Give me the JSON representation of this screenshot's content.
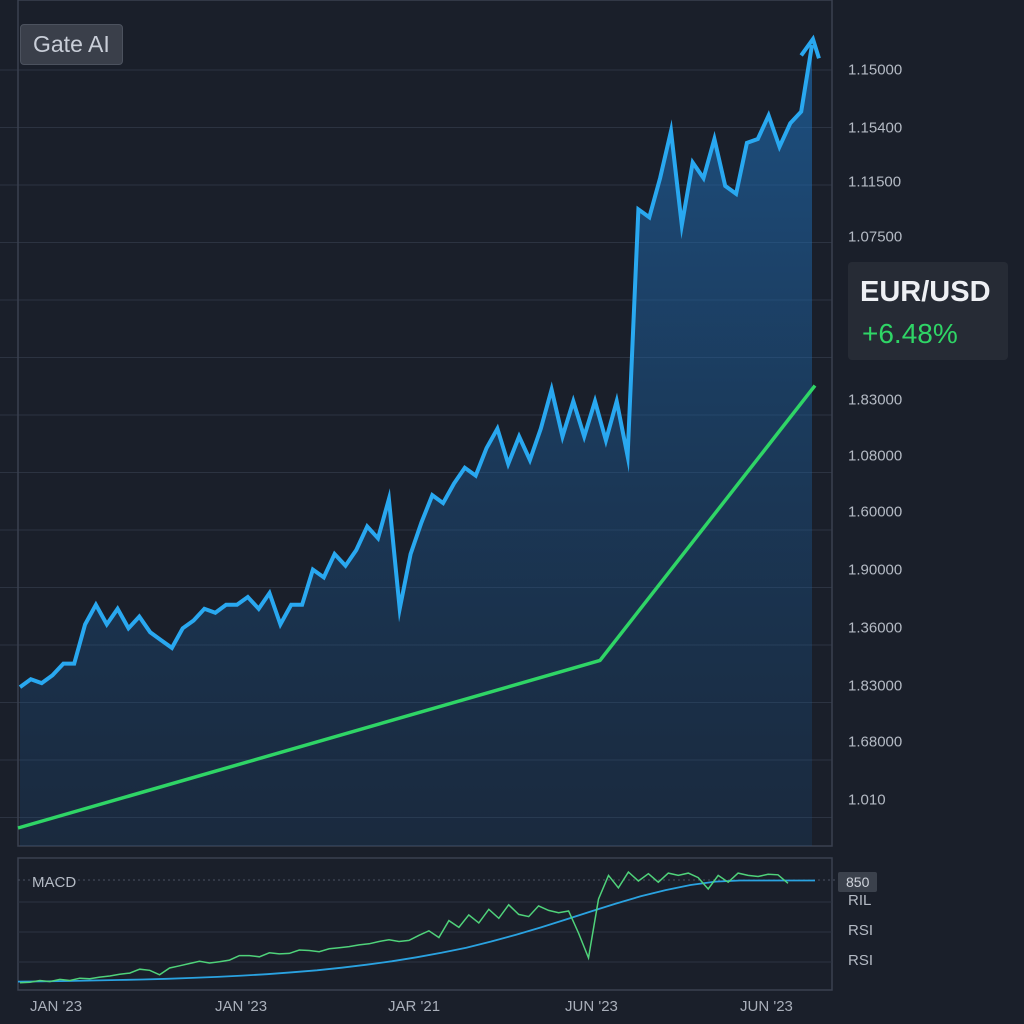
{
  "brand": "Gate AI",
  "pair": {
    "name": "EUR/USD",
    "change": "+6.48%"
  },
  "colors": {
    "price_line": "#29a8f0",
    "moving_average": "#2fd566",
    "macd_line": "#2aa2e0",
    "signal_line": "#4fd27a",
    "background": "#1a1f2a"
  },
  "price_axis_labels": [
    "1.15000",
    "1.15400",
    "1.11500",
    "1.07500",
    "1.83000",
    "1.08000",
    "1.60000",
    "1.90000",
    "1.36000",
    "1.83000",
    "1.68000",
    "1.010"
  ],
  "indicator_panel": {
    "title": "MACD",
    "value_badge": "850",
    "labels": [
      "RIL",
      "RSI",
      "RSI"
    ]
  },
  "date_labels": [
    "JAN '23",
    "JAN '23",
    "JAR '21",
    "JUN '23",
    "JUN '23"
  ],
  "chart_data": [
    {
      "type": "line",
      "title": "",
      "grid": true,
      "y_scale": "price axis labels are not monotonic; series given as relative level 0–100 read from gridlines",
      "series": [
        {
          "values": [
            18,
            19,
            18.5,
            19.5,
            21,
            21,
            26,
            28.5,
            26,
            28,
            25.5,
            27,
            25,
            24,
            23,
            25.5,
            26.5,
            28,
            27.5,
            28.5,
            28.5,
            29.5,
            28,
            30,
            26,
            28.5,
            28.5,
            33,
            32,
            35,
            33.5,
            35.5,
            38.5,
            37,
            42,
            28,
            35,
            39,
            42.5,
            41.5,
            44,
            46,
            45,
            48.5,
            51,
            46.5,
            50,
            47,
            51,
            56,
            50,
            54.5,
            50,
            54.5,
            49.5,
            54.5,
            47.5,
            79,
            78,
            83,
            89,
            77,
            85,
            83,
            88,
            82,
            81,
            87.5,
            88,
            91,
            87,
            90,
            91.5,
            100
          ]
        },
        {
          "values": [
            0,
            56.5
          ]
        }
      ]
    },
    {
      "type": "line",
      "title": "MACD",
      "series": [
        {
          "values": [
            3,
            3.2,
            3.5,
            4,
            4.4,
            4.9,
            5.5,
            6.3,
            7.2,
            8.3,
            9.6,
            11.2,
            13,
            15.3,
            18,
            21,
            24.5,
            28.5,
            33,
            38.5,
            44.5,
            51,
            58,
            65,
            72,
            78.5,
            84,
            88.5,
            91.5,
            92.5,
            92.5,
            92.5,
            92.5
          ]
        },
        {
          "values": [
            2,
            2.5,
            4,
            3,
            5,
            4,
            6,
            5.5,
            7,
            8,
            9.5,
            10.5,
            14,
            13,
            9,
            15,
            17,
            19,
            21,
            19.5,
            20.5,
            22,
            26,
            26,
            25,
            28.5,
            27.5,
            28,
            31,
            30.5,
            29.5,
            32,
            33,
            34,
            35.5,
            36.5,
            38.5,
            40,
            38.5,
            39.5,
            44,
            48,
            42,
            57,
            51,
            62,
            55,
            67,
            59,
            71,
            62.5,
            60.5,
            70,
            66,
            64,
            65.5,
            46,
            24,
            76,
            97,
            86,
            100,
            92,
            98.5,
            91,
            99,
            97,
            99,
            95,
            85,
            97,
            91,
            99,
            97,
            96,
            98,
            97.5,
            90
          ]
        }
      ]
    }
  ]
}
